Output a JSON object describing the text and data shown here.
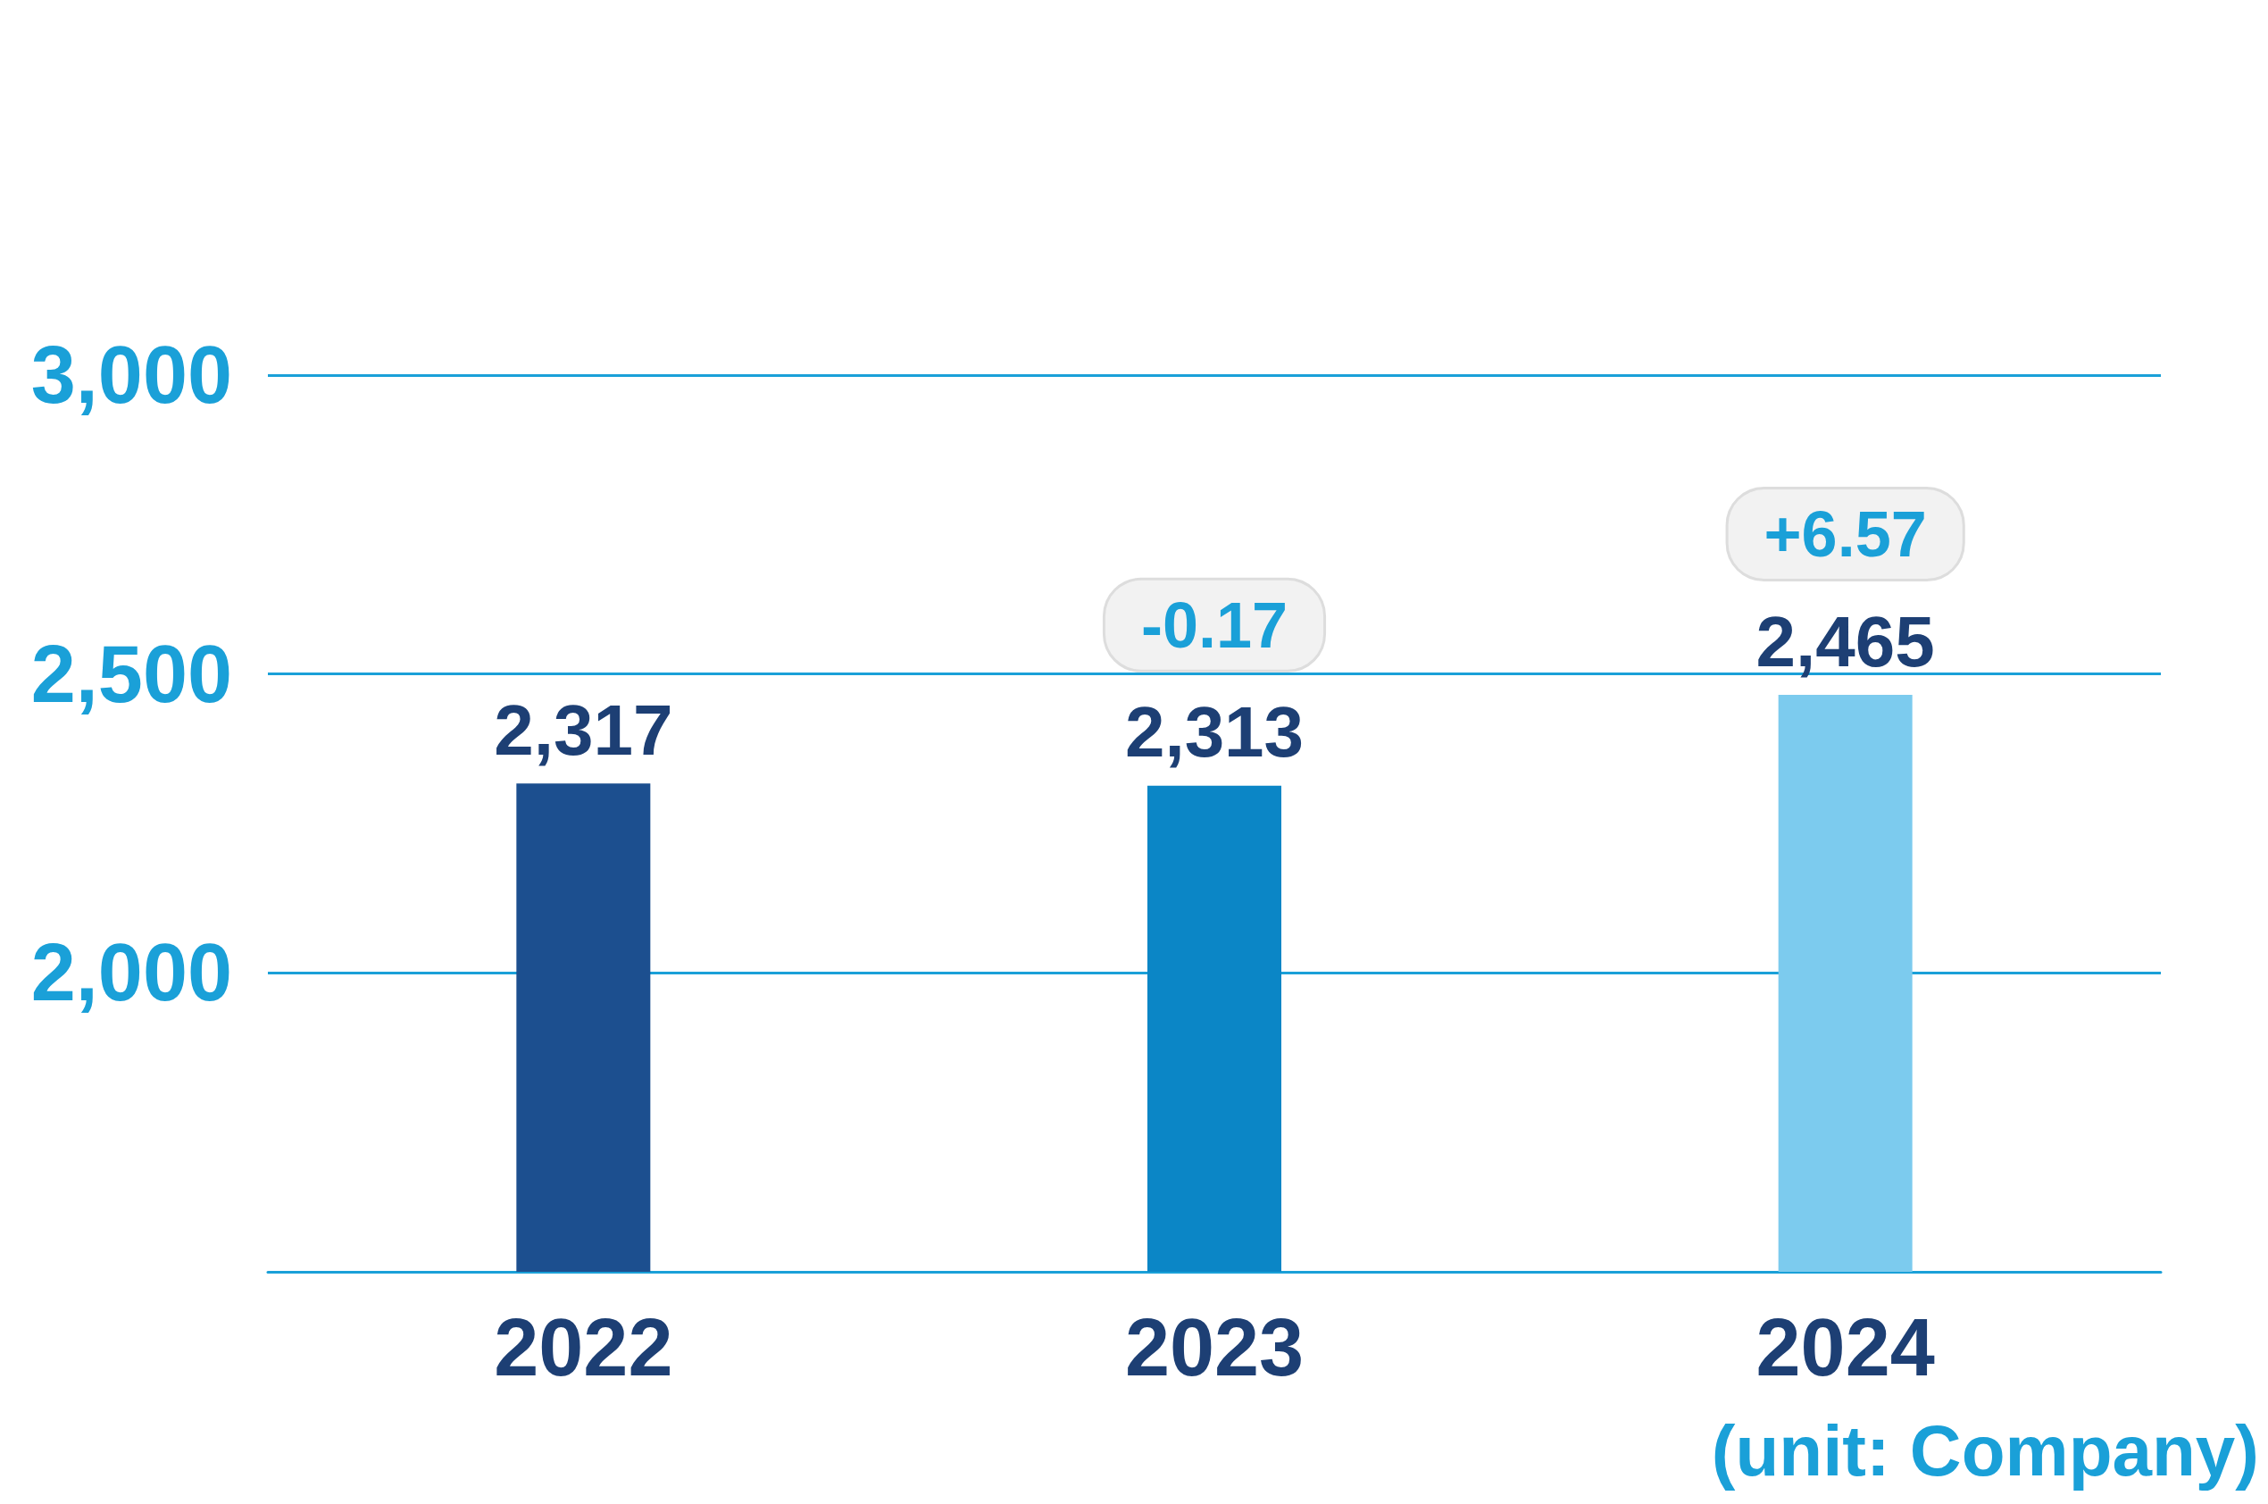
{
  "chart_data": {
    "type": "bar",
    "categories": [
      "2022",
      "2023",
      "2024"
    ],
    "values": [
      2317,
      2313,
      2465
    ],
    "colors": [
      "#1c4f8f",
      "#0b86c6",
      "#7ccbee"
    ],
    "ylim": [
      1500,
      3000
    ],
    "yticks": [
      {
        "value": 1500,
        "label": null
      },
      {
        "value": 2000,
        "label": "2,000"
      },
      {
        "value": 2500,
        "label": "2,500"
      },
      {
        "value": 3000,
        "label": "3,000"
      }
    ],
    "grid": "y",
    "value_labels": [
      "2,317",
      "2,313",
      "2,465"
    ],
    "annotations": [
      {
        "text": "-0.17",
        "x": "2023",
        "y": 2313
      },
      {
        "text": "+6.57",
        "x": "2024",
        "y": 2465
      },
      "(unit: Company)"
    ]
  }
}
